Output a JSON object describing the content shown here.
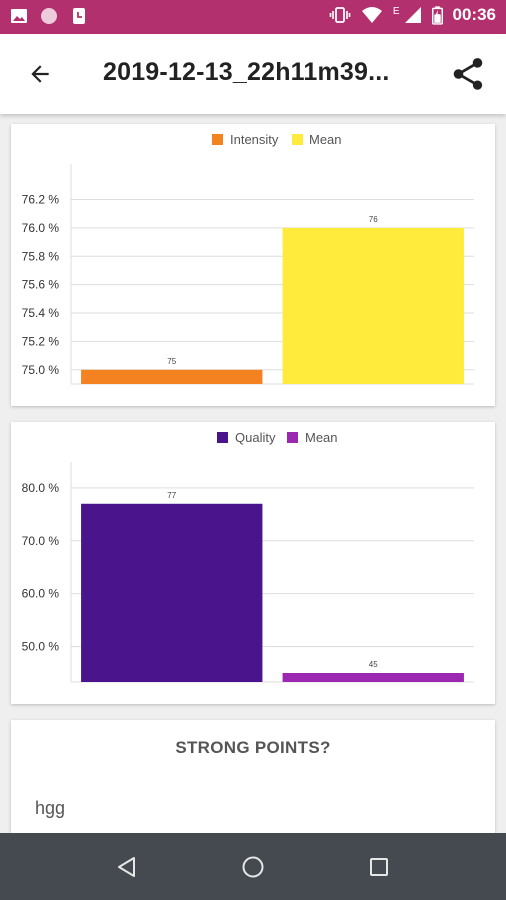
{
  "status_bar": {
    "time": "00:36",
    "network_letter": "E",
    "icons": [
      "image-icon",
      "circle-icon",
      "clock-app-icon",
      "vibrate-icon",
      "wifi-icon",
      "signal-icon",
      "battery-icon"
    ],
    "color": "#b3306e"
  },
  "app_bar": {
    "title": "2019-12-13_22h11m39...",
    "back_icon": "arrow-back-icon",
    "share_icon": "share-icon"
  },
  "charts": {
    "intensity": {
      "legend": [
        {
          "label": "Intensity",
          "color": "#f58220"
        },
        {
          "label": "Mean",
          "color": "#ffeb3b"
        }
      ],
      "tick_labels": [
        "76.2 %",
        "76.0 %",
        "75.8 %",
        "75.6 %",
        "75.4 %",
        "75.2 %",
        "75.0 %"
      ],
      "bar_labels": [
        "75",
        "76"
      ]
    },
    "quality": {
      "legend": [
        {
          "label": "Quality",
          "color": "#4a148c"
        },
        {
          "label": "Mean",
          "color": "#9c27b0"
        }
      ],
      "tick_labels": [
        "80.0 %",
        "70.0 %",
        "60.0 %",
        "50.0 %"
      ],
      "bar_labels": [
        "77",
        "45"
      ]
    }
  },
  "chart_data": [
    {
      "type": "bar",
      "categories": [
        "Intensity",
        "Mean"
      ],
      "values": [
        75.0,
        76.0
      ],
      "colors": [
        "#f58220",
        "#ffeb3b"
      ],
      "ylim": [
        74.9,
        76.45
      ],
      "yticks": [
        75.0,
        75.2,
        75.4,
        75.6,
        75.8,
        76.0,
        76.2
      ],
      "grid": true,
      "legend_position": "top-center",
      "title": "",
      "xlabel": "",
      "ylabel": ""
    },
    {
      "type": "bar",
      "categories": [
        "Quality",
        "Mean"
      ],
      "values": [
        77,
        45
      ],
      "colors": [
        "#4a148c",
        "#9c27b0"
      ],
      "ylim": [
        43.3,
        84.9
      ],
      "yticks": [
        50,
        60,
        70,
        80
      ],
      "grid": true,
      "legend_position": "top-center",
      "title": "",
      "xlabel": "",
      "ylabel": ""
    }
  ],
  "strong_points": {
    "title": "STRONG POINTS?",
    "text": "hgg"
  },
  "nav_bar": {
    "icons": [
      "nav-back-icon",
      "nav-home-icon",
      "nav-recents-icon"
    ]
  }
}
